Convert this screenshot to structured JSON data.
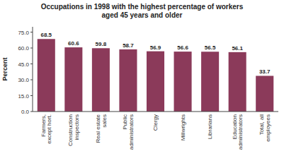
{
  "chart_data": {
    "type": "bar",
    "title": "Occupations in 1998 with the highest percentage of workers\naged 45 years and older",
    "categories": [
      "Farmers,\nexcept hort.",
      "Construction\ninspectors",
      "Real estate\nsales",
      "Public\nadministrators",
      "Clergy",
      "Millwrights",
      "Librarians",
      "Education\nadministrators",
      "Total, all\nemployees"
    ],
    "values": [
      68.5,
      60.6,
      59.8,
      58.7,
      56.9,
      56.6,
      56.5,
      56.1,
      33.7
    ],
    "color": "#8B3A5A",
    "ylabel": "Percent",
    "ylim": [
      0,
      80
    ],
    "yticks": [
      {
        "value": 0.0,
        "label": "0.0"
      },
      {
        "value": 15.0,
        "label": "15.0"
      },
      {
        "value": 30.0,
        "label": "30.0"
      },
      {
        "value": 45.0,
        "label": "45.0"
      },
      {
        "value": 60.0,
        "label": "60.0"
      },
      {
        "value": 75.0,
        "label": "75.0"
      }
    ],
    "grid": false,
    "data_labels": true
  }
}
